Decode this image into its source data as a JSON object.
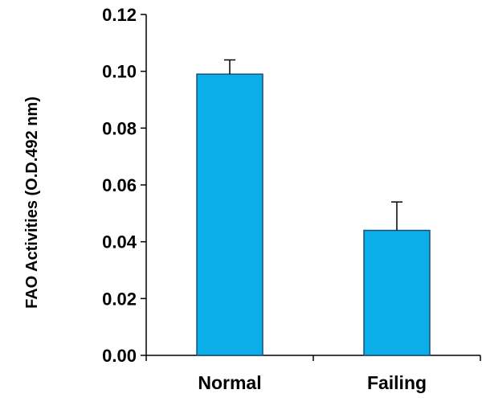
{
  "chart_data": {
    "type": "bar",
    "categories": [
      "Normal",
      "Failing"
    ],
    "values": [
      0.099,
      0.044
    ],
    "error_plus": [
      0.005,
      0.01
    ],
    "title": "",
    "xlabel": "",
    "ylabel": "FAO Activities (O.D.492 nm)",
    "ylim": [
      0,
      0.12
    ],
    "yticks": [
      "0.00",
      "0.02",
      "0.04",
      "0.06",
      "0.08",
      "0.10",
      "0.12"
    ],
    "bar_color": "#0baee8",
    "bar_edge_color": "#1f4e79",
    "grid": false,
    "legend": "none"
  }
}
